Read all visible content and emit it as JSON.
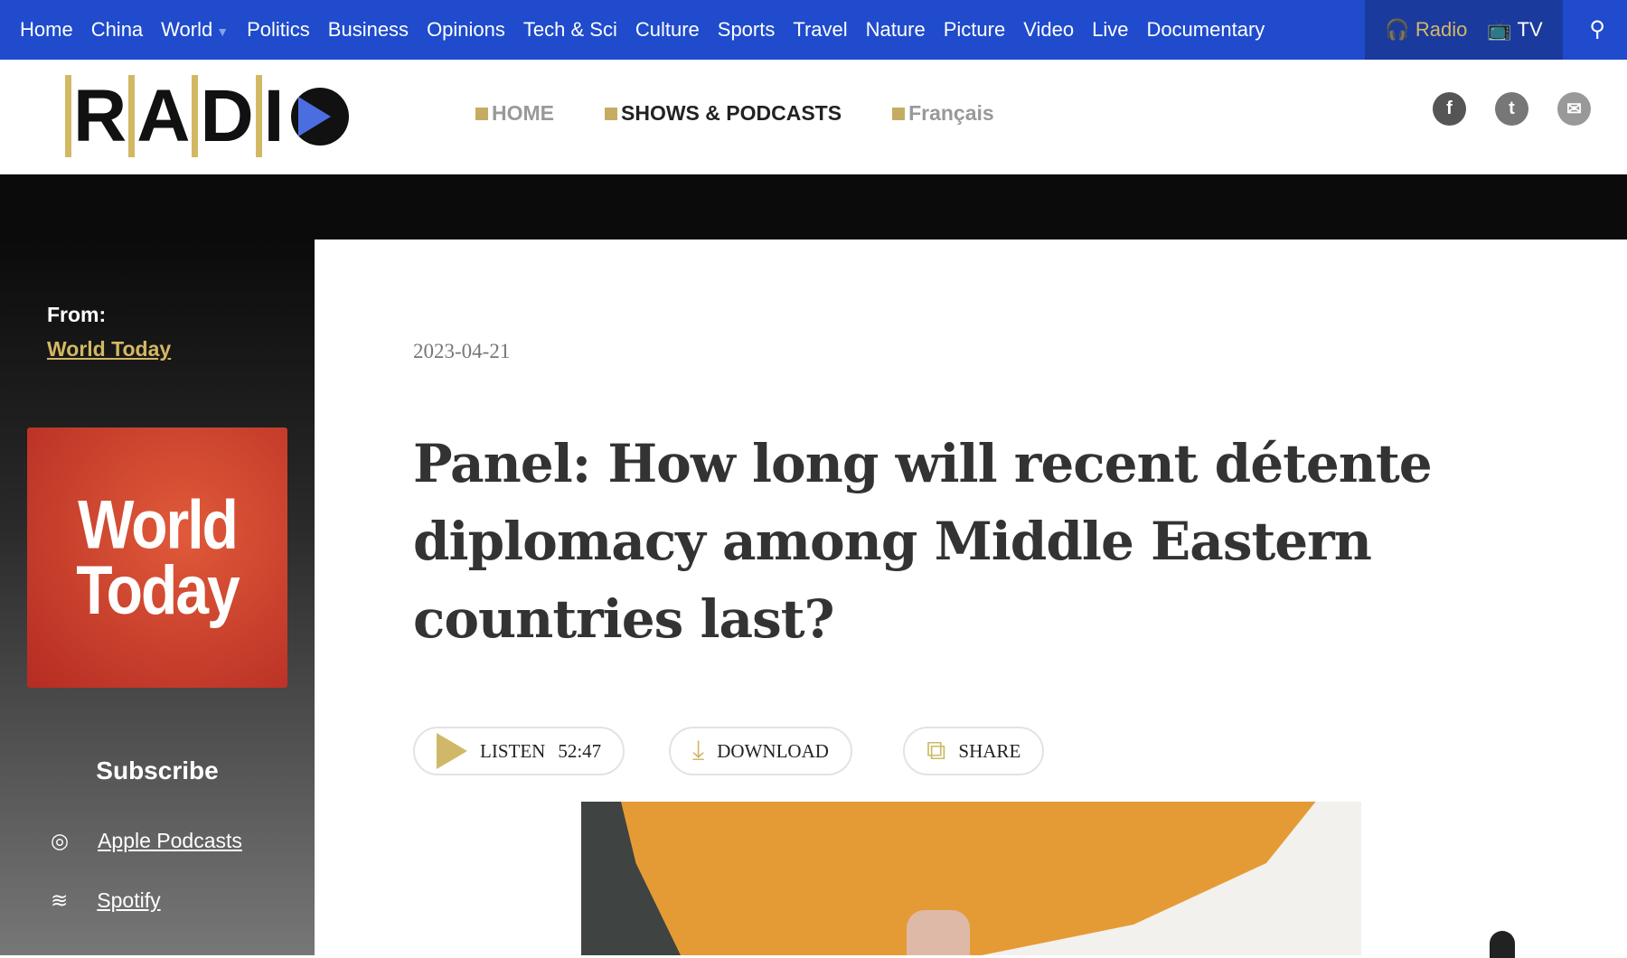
{
  "topnav": {
    "items": [
      "Home",
      "China",
      "World",
      "Politics",
      "Business",
      "Opinions",
      "Tech & Sci",
      "Culture",
      "Sports",
      "Travel",
      "Nature",
      "Picture",
      "Video",
      "Live",
      "Documentary"
    ],
    "radio": "Radio",
    "tv": "TV"
  },
  "header": {
    "logo": "RADIO",
    "nav": [
      {
        "label": "HOME"
      },
      {
        "label": "SHOWS & PODCASTS",
        "active": true
      },
      {
        "label": "Français"
      }
    ]
  },
  "sidebar": {
    "from_label": "From:",
    "from_link": "World Today",
    "cover_text": "World Today",
    "subscribe": "Subscribe",
    "items": [
      {
        "label": "Apple Podcasts",
        "icon": "podcast-icon"
      },
      {
        "label": "Spotify",
        "icon": "spotify-icon"
      }
    ]
  },
  "article": {
    "date": "2023-04-21",
    "title": "Panel: How long will recent détente diplomacy among Middle Eastern countries last?",
    "listen": "LISTEN",
    "duration": "52:47",
    "download": "DOWNLOAD",
    "share": "SHARE"
  },
  "colors": {
    "nav_blue": "#1f4bcc",
    "gold": "#d3b863"
  }
}
